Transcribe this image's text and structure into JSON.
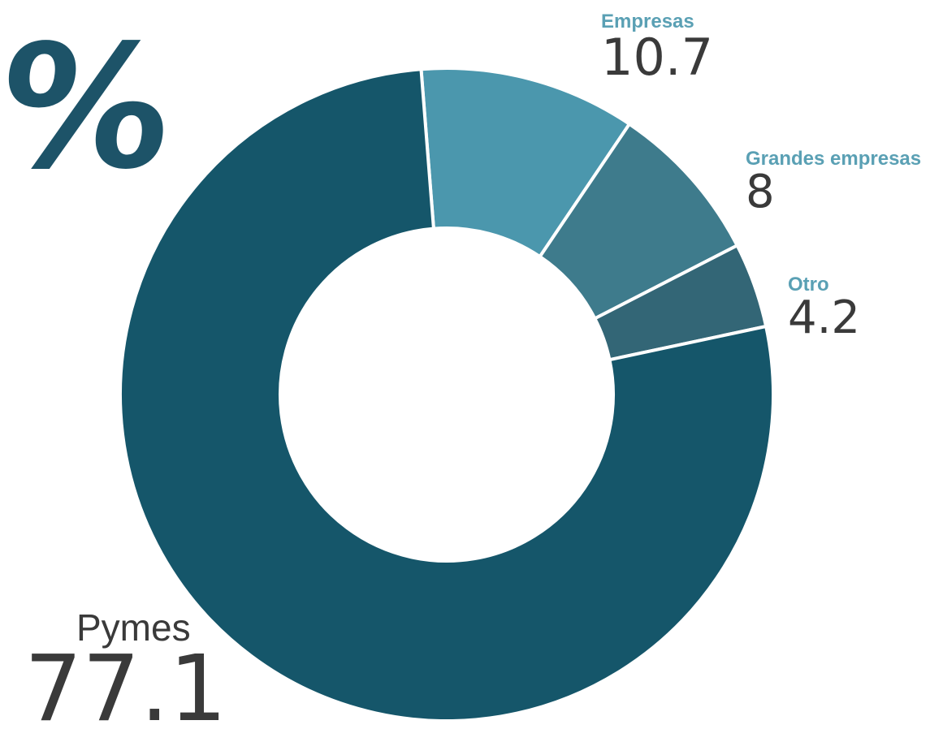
{
  "unit_symbol": "%",
  "chart_data": {
    "type": "pie",
    "style": "donut",
    "unit": "%",
    "slices": [
      {
        "label": "Empresas",
        "value": 10.7,
        "value_text": "10.7",
        "color": "#4b97ad",
        "label_color": "#5aa0b4"
      },
      {
        "label": "Grandes empresas",
        "value": 8,
        "value_text": "8",
        "color": "#3e7b8c",
        "label_color": "#5aa0b4"
      },
      {
        "label": "Otro",
        "value": 4.2,
        "value_text": "4.2",
        "color": "#336676",
        "label_color": "#5aa0b4"
      },
      {
        "label": "Pymes",
        "value": 77.1,
        "value_text": "77.1",
        "color": "#15566a",
        "label_color": "#3a3a3a"
      }
    ],
    "start_angle_deg": -94.5,
    "direction": "clockwise"
  }
}
